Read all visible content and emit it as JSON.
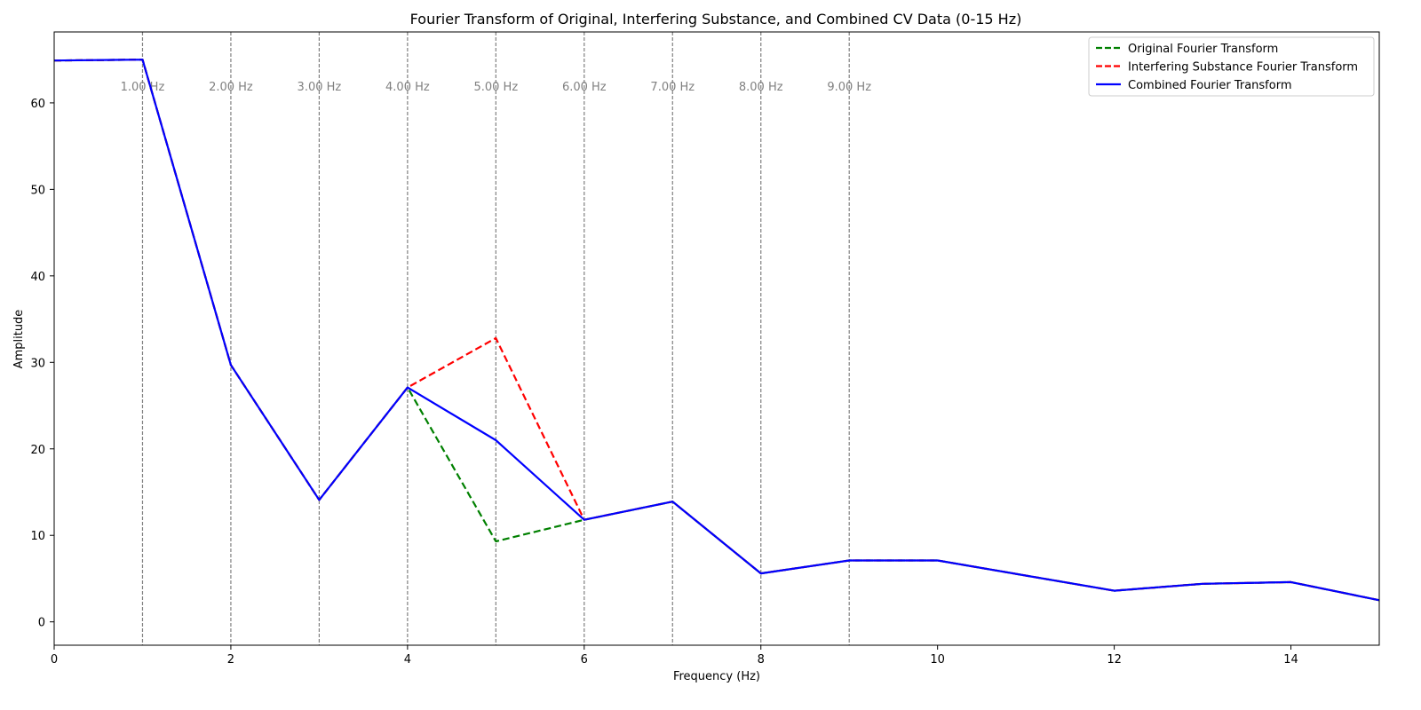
{
  "chart_data": {
    "type": "line",
    "title": "Fourier Transform of Original, Interfering Substance, and Combined CV Data (0-15 Hz)",
    "xlabel": "Frequency (Hz)",
    "ylabel": "Amplitude",
    "xlim": [
      0,
      15
    ],
    "ylim": [
      -2.7,
      68.2
    ],
    "xticks": [
      0,
      2,
      4,
      6,
      8,
      10,
      12,
      14
    ],
    "yticks": [
      0,
      10,
      20,
      30,
      40,
      50,
      60
    ],
    "grid": false,
    "legend_position": "top-right",
    "reference_lines": [
      {
        "x": 1,
        "label": "1.00 Hz"
      },
      {
        "x": 2,
        "label": "2.00 Hz"
      },
      {
        "x": 3,
        "label": "3.00 Hz"
      },
      {
        "x": 4,
        "label": "4.00 Hz"
      },
      {
        "x": 5,
        "label": "5.00 Hz"
      },
      {
        "x": 6,
        "label": "6.00 Hz"
      },
      {
        "x": 7,
        "label": "7.00 Hz"
      },
      {
        "x": 8,
        "label": "8.00 Hz"
      },
      {
        "x": 9,
        "label": "9.00 Hz"
      }
    ],
    "series": [
      {
        "name": "Original Fourier Transform",
        "color": "#008000",
        "style": "dashed",
        "x": [
          0,
          1,
          2,
          3,
          4,
          5,
          6,
          7,
          8,
          9,
          10,
          12,
          13,
          14,
          15
        ],
        "y": [
          64.9,
          65.0,
          29.7,
          14.1,
          27.1,
          9.3,
          11.8,
          13.9,
          5.6,
          7.1,
          7.1,
          3.6,
          4.4,
          4.6,
          2.5
        ]
      },
      {
        "name": "Interfering Substance Fourier Transform",
        "color": "#ff0000",
        "style": "dashed",
        "x": [
          0,
          1,
          2,
          3,
          4,
          5,
          6,
          7,
          8,
          9,
          10,
          12,
          13,
          14,
          15
        ],
        "y": [
          64.9,
          65.0,
          29.7,
          14.1,
          27.1,
          32.8,
          11.8,
          13.9,
          5.6,
          7.1,
          7.1,
          3.6,
          4.4,
          4.6,
          2.5
        ]
      },
      {
        "name": "Combined Fourier Transform",
        "color": "#0000ff",
        "style": "solid",
        "x": [
          0,
          1,
          2,
          3,
          4,
          5,
          6,
          7,
          8,
          9,
          10,
          12,
          13,
          14,
          15
        ],
        "y": [
          64.9,
          65.0,
          29.7,
          14.1,
          27.1,
          21.0,
          11.8,
          13.9,
          5.6,
          7.1,
          7.1,
          3.6,
          4.4,
          4.6,
          2.5
        ]
      }
    ]
  }
}
